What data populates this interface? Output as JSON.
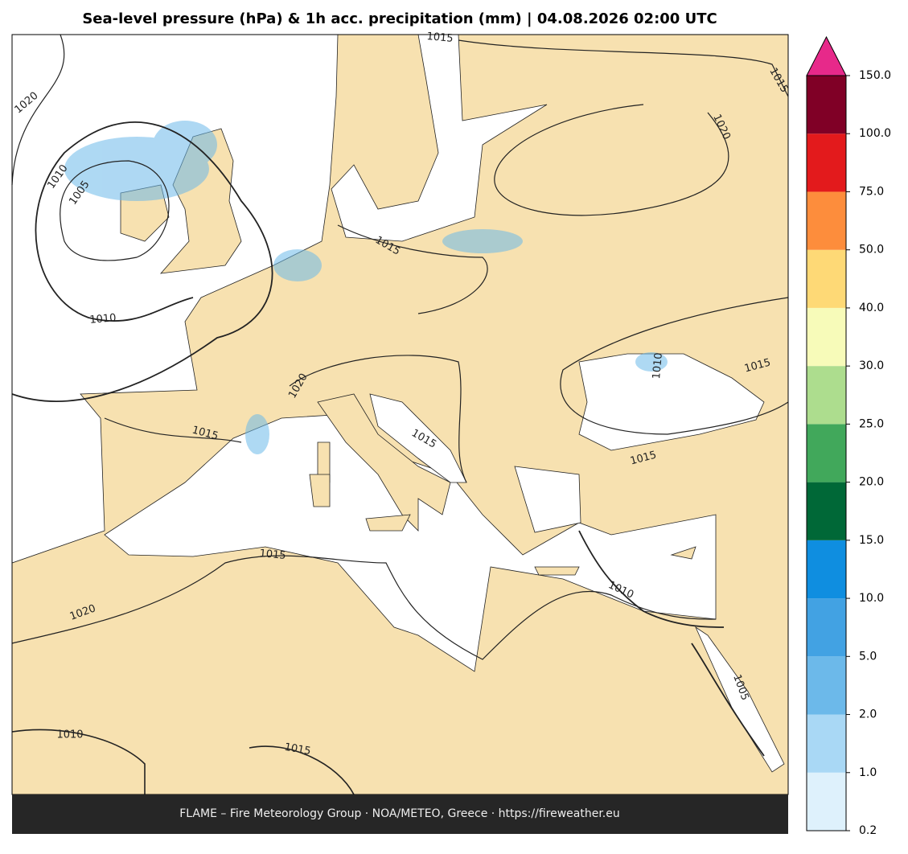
{
  "title": "Sea-level pressure (hPa) & 1h acc. precipitation (mm)  |  04.08.2026 02:00 UTC",
  "footer": "FLAME – Fire Meteorology Group · NOA/METEO, Greece · https://fireweather.eu",
  "colorbar": {
    "ticks": [
      {
        "value": 0.2,
        "label": "0.2"
      },
      {
        "value": 1,
        "label": "1.0"
      },
      {
        "value": 2,
        "label": "2.0"
      },
      {
        "value": 5,
        "label": "5.0"
      },
      {
        "value": 10,
        "label": "10.0"
      },
      {
        "value": 15,
        "label": "15.0"
      },
      {
        "value": 20,
        "label": "20.0"
      },
      {
        "value": 25,
        "label": "25.0"
      },
      {
        "value": 30,
        "label": "30.0"
      },
      {
        "value": 40,
        "label": "40.0"
      },
      {
        "value": 50,
        "label": "50.0"
      },
      {
        "value": 75,
        "label": "75.0"
      },
      {
        "value": 100,
        "label": "100.0"
      },
      {
        "value": 150,
        "label": "150.0"
      }
    ],
    "colors": [
      "#def1fc",
      "#a9d8f5",
      "#6cb9ea",
      "#42a2e3",
      "#0f8ee0",
      "#006837",
      "#41a85b",
      "#addd8e",
      "#f7fbb9",
      "#fed976",
      "#fd8d3c",
      "#e31a1c",
      "#800026"
    ],
    "extend_color": "#e7298a"
  },
  "contour_labels": [
    1015,
    1020,
    1015,
    1020,
    1010,
    1005,
    1015,
    1010,
    1010,
    1015,
    1020,
    1015,
    1015,
    1015,
    1015,
    1020,
    1010,
    1005,
    1010,
    1015
  ]
}
